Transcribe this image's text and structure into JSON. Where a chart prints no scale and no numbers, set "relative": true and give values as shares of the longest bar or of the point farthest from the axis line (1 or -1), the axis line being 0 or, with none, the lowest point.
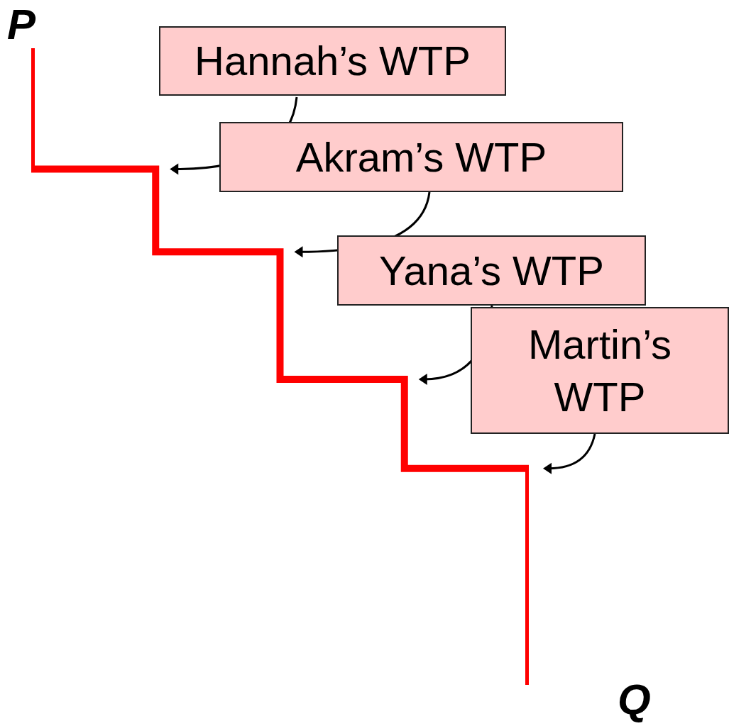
{
  "chart_data": {
    "type": "step",
    "xlabel": "Q",
    "ylabel": "P",
    "relative": true,
    "marker": "none",
    "line_style": "solid",
    "legend": false,
    "categories": [
      null,
      null,
      null,
      null,
      null,
      null
    ],
    "series": [
      {
        "color": "#ff0000",
        "values": [
          1,
          0.81,
          0.68,
          0.48,
          0.34,
          0
        ]
      }
    ],
    "annotations": [
      "Hannah’s WTP",
      "Akram’s WTP",
      "Yana’s WTP",
      "Martin’s WTP"
    ]
  }
}
